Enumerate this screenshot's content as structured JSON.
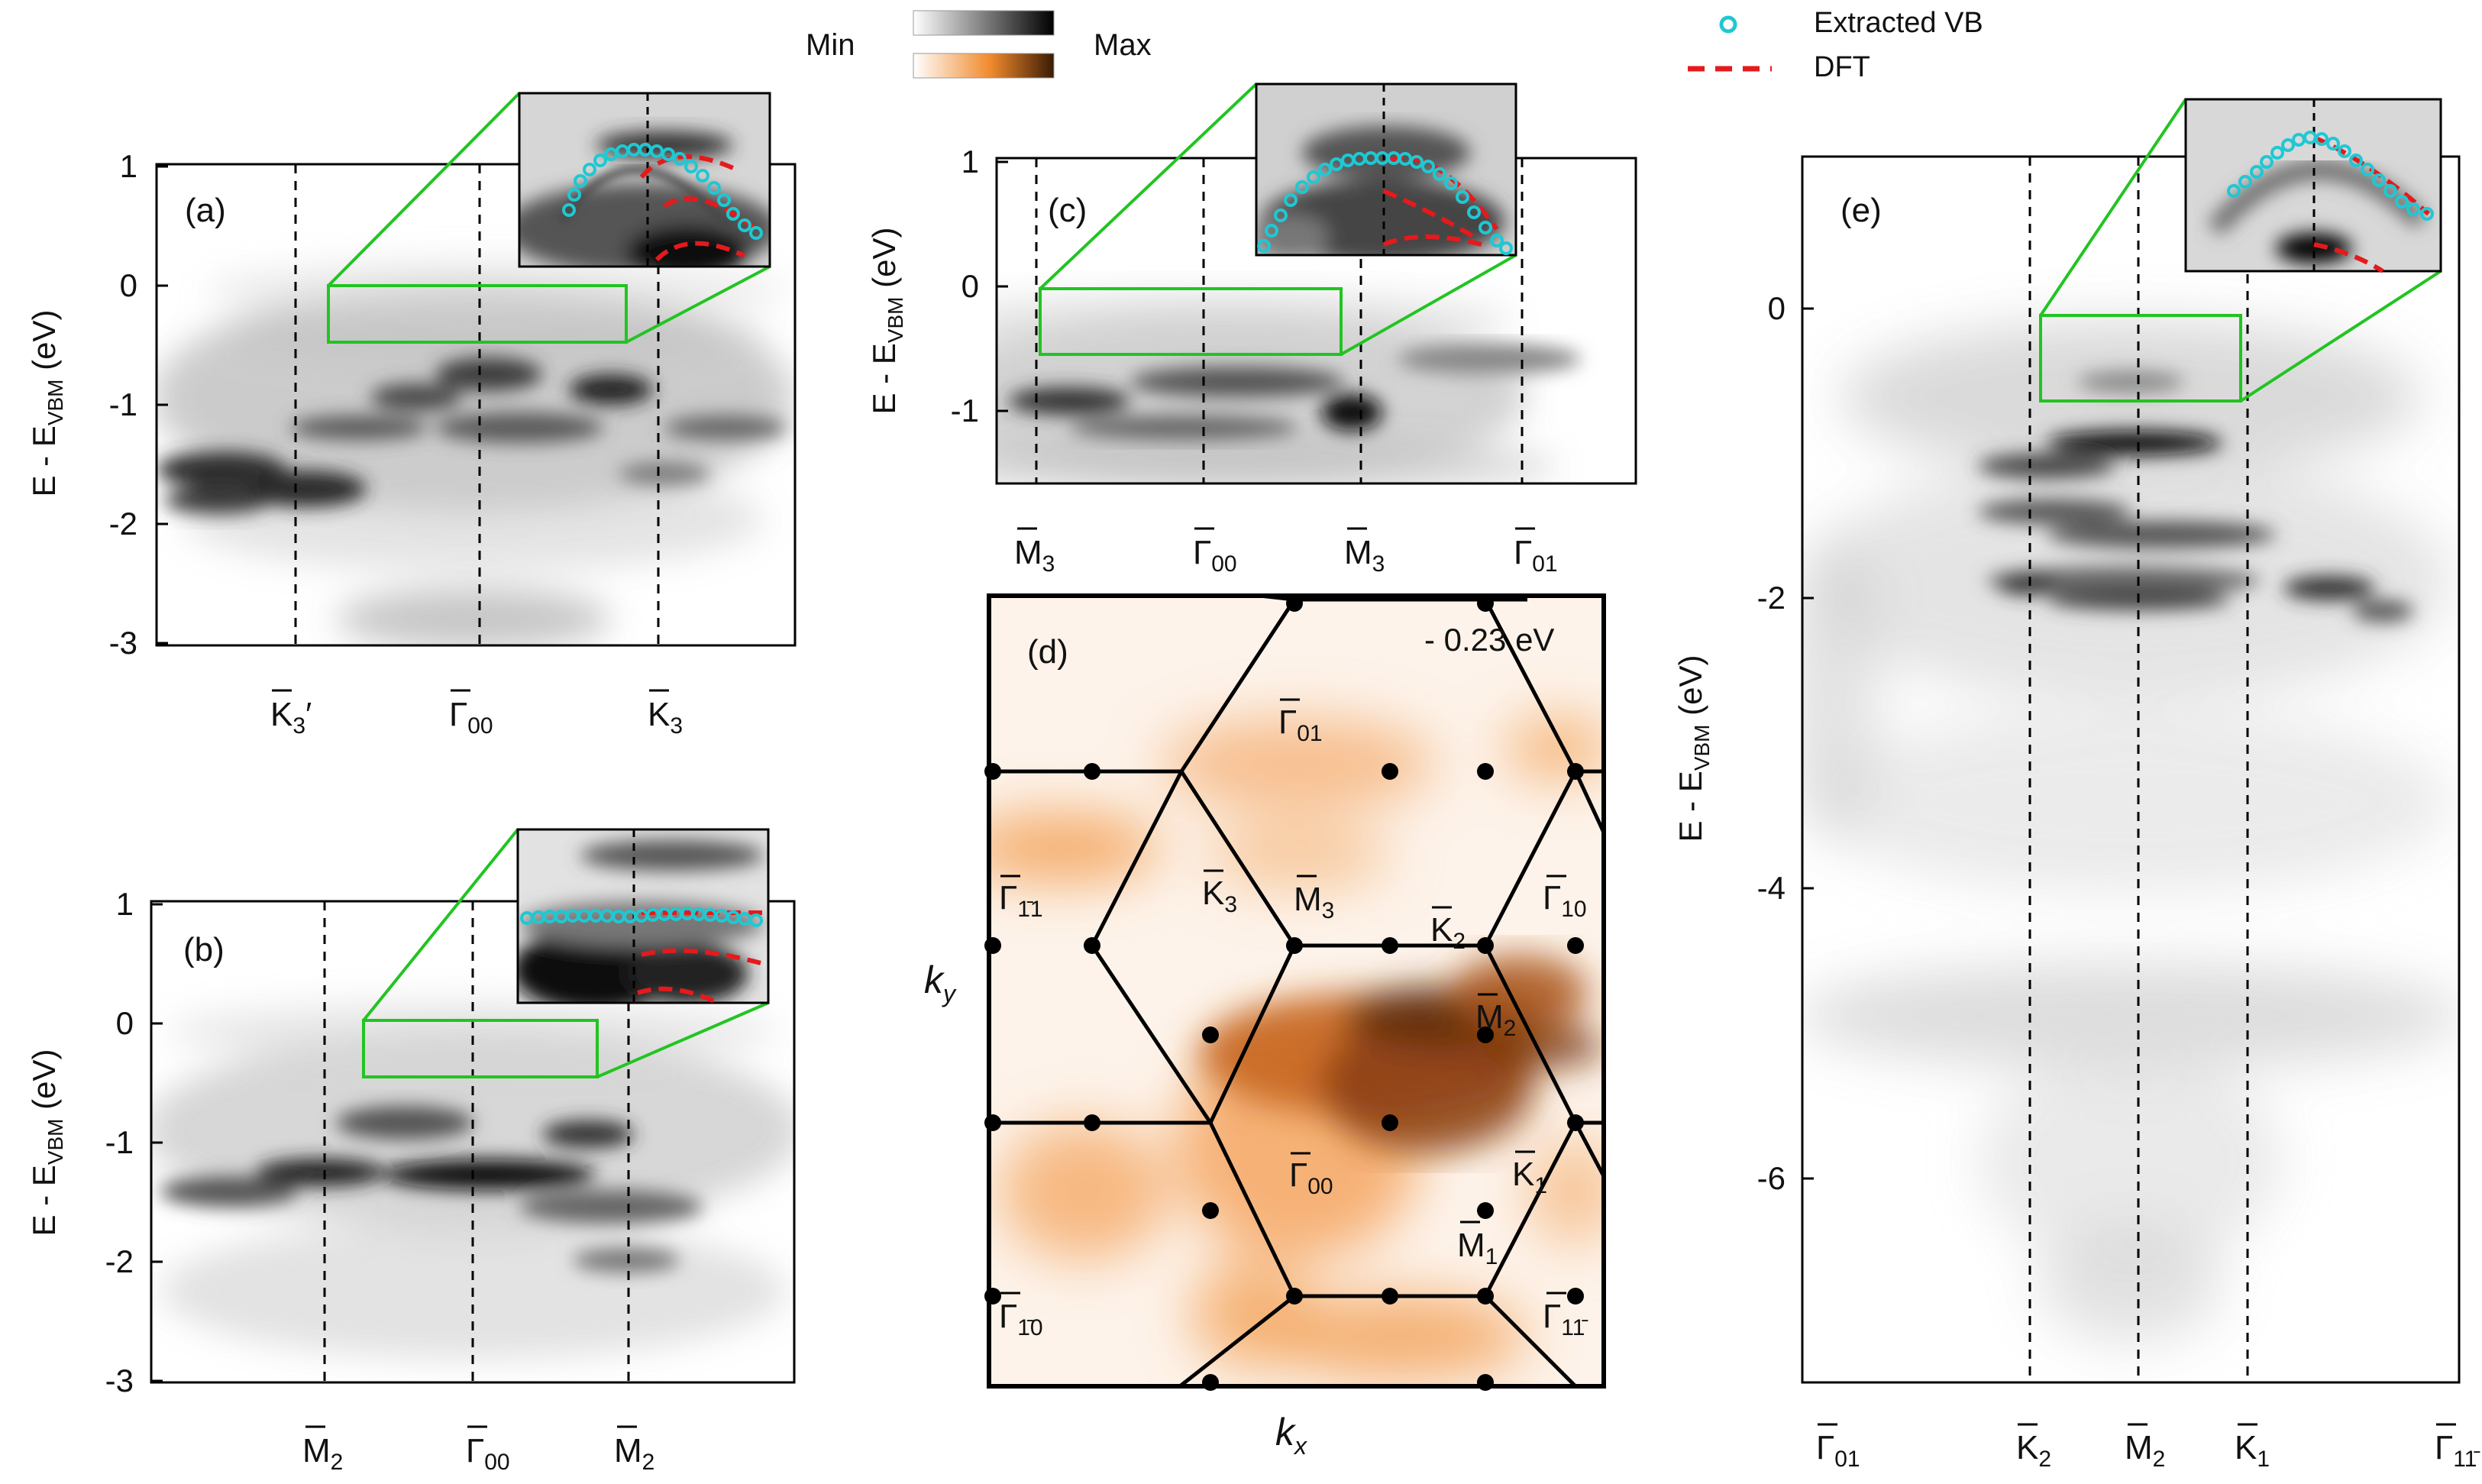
{
  "legend": {
    "min_label": "Min",
    "max_label": "Max",
    "gray_colorbar": [
      "#ffffff",
      "#000000"
    ],
    "orange_colorbar": [
      "#ffffff",
      "#f08a2c",
      "#3a1a05"
    ],
    "extracted_label": "Extracted VB",
    "dft_label": "DFT",
    "extracted_color": "#1fc8d2",
    "dft_color": "#e41a1c"
  },
  "axis_label_prefix": "E - E",
  "axis_label_sub": "VBM",
  "axis_label_unit": " (eV)",
  "panels": {
    "a": {
      "label": "(a)",
      "yticks": [
        "1",
        "0",
        "-1",
        "-2",
        "-3"
      ],
      "k_points": [
        {
          "main": "K",
          "sub": "3",
          "prime": "′"
        },
        {
          "main": "Γ",
          "sub": "00",
          "prime": ""
        },
        {
          "main": "K",
          "sub": "3",
          "prime": ""
        }
      ]
    },
    "b": {
      "label": "(b)",
      "yticks": [
        "1",
        "0",
        "-1",
        "-2",
        "-3"
      ],
      "k_points": [
        {
          "main": "M",
          "sub": "2"
        },
        {
          "main": "Γ",
          "sub": "00"
        },
        {
          "main": "M",
          "sub": "2"
        }
      ]
    },
    "c": {
      "label": "(c)",
      "yticks": [
        "1",
        "0",
        "-1"
      ],
      "k_points": [
        {
          "main": "M",
          "sub": "3"
        },
        {
          "main": "Γ",
          "sub": "00"
        },
        {
          "main": "M",
          "sub": "3"
        },
        {
          "main": "Γ",
          "sub": "01"
        }
      ]
    },
    "d": {
      "label": "(d)",
      "energy": "- 0.23 eV",
      "kx": "k",
      "kx_sub": "x",
      "ky": "k",
      "ky_sub": "y",
      "points": [
        {
          "main": "Γ",
          "sub": "01"
        },
        {
          "main": "Γ",
          "sub": "1̄1"
        },
        {
          "main": "K",
          "sub": "3"
        },
        {
          "main": "M",
          "sub": "3"
        },
        {
          "main": "K",
          "sub": "2"
        },
        {
          "main": "Γ",
          "sub": "10"
        },
        {
          "main": "M",
          "sub": "2"
        },
        {
          "main": "Γ",
          "sub": "00"
        },
        {
          "main": "K",
          "sub": "1"
        },
        {
          "main": "M",
          "sub": "1"
        },
        {
          "main": "Γ",
          "sub": "1̄0"
        },
        {
          "main": "Γ",
          "sub": "11̄"
        }
      ]
    },
    "e": {
      "label": "(e)",
      "yticks": [
        "0",
        "-2",
        "-4",
        "-6"
      ],
      "k_points": [
        {
          "main": "Γ",
          "sub": "01"
        },
        {
          "main": "K",
          "sub": "2"
        },
        {
          "main": "M",
          "sub": "2"
        },
        {
          "main": "K",
          "sub": "1"
        },
        {
          "main": "Γ",
          "sub": "11̄"
        }
      ]
    }
  }
}
